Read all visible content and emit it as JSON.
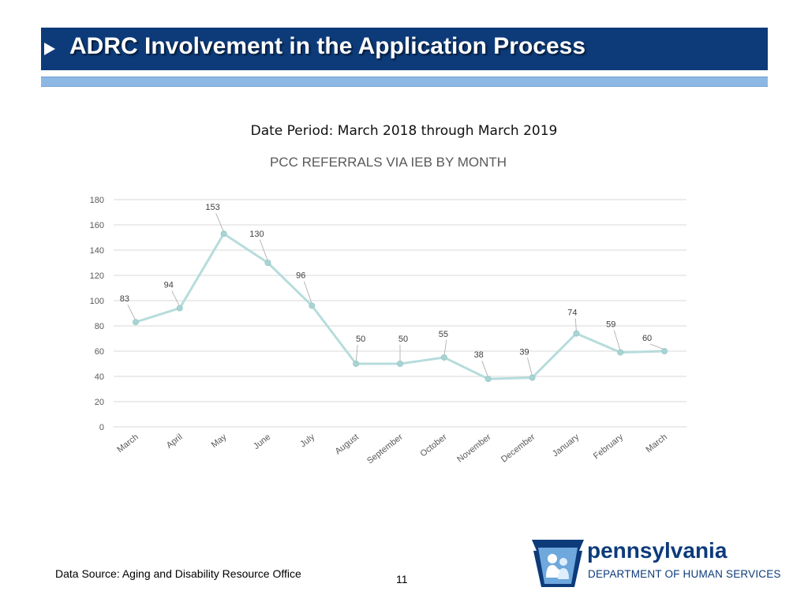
{
  "slide": {
    "title": "ADRC Involvement in the Application Process",
    "subtitle": "Date Period: March 2018 through March 2019",
    "footer_source": "Data Source: Aging and Disability Resource Office",
    "page_number": "11"
  },
  "logo": {
    "name": "pennsylvania",
    "department": "DEPARTMENT OF HUMAN SERVICES"
  },
  "colors": {
    "title_bar": "#0d3b7a",
    "accent_bar": "#8db8e3",
    "line": "#b7dcdc",
    "marker": "#a9d4d4",
    "grid": "#d9d9d9",
    "label": "#404040",
    "axis_text": "#595959"
  },
  "chart_data": {
    "type": "line",
    "title": "PCC REFERRALS VIA IEB BY MONTH",
    "categories": [
      "March",
      "April",
      "May",
      "June",
      "July",
      "August",
      "September",
      "October",
      "November",
      "December",
      "January",
      "February",
      "March"
    ],
    "values": [
      83,
      94,
      153,
      130,
      96,
      50,
      50,
      55,
      38,
      39,
      74,
      59,
      60
    ],
    "y_ticks": [
      0,
      20,
      40,
      60,
      80,
      100,
      120,
      140,
      160,
      180
    ],
    "ylim": [
      0,
      180
    ],
    "grid": true,
    "xlabel": "",
    "ylabel": ""
  }
}
